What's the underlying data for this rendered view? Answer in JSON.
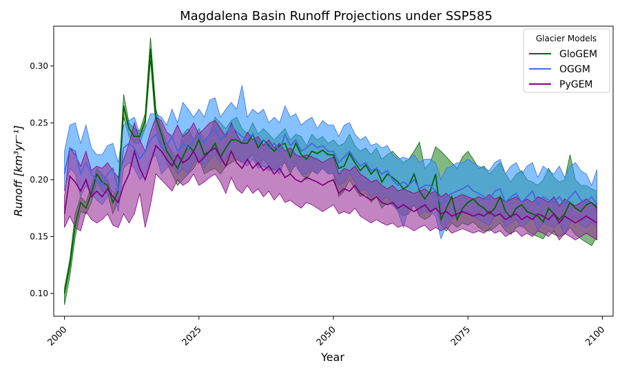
{
  "chart_data": {
    "type": "area",
    "title": "Magdalena Basin Runoff Projections under SSP585",
    "xlabel": "Year",
    "ylabel": "Runoff [km³yr⁻¹]",
    "xlim": [
      1998,
      2102
    ],
    "ylim": [
      0.08,
      0.335
    ],
    "xticks": [
      2000,
      2025,
      2050,
      2075,
      2100
    ],
    "yticks": [
      0.1,
      0.15,
      0.2,
      0.25,
      0.3
    ],
    "legend": {
      "title": "Glacier Models",
      "placement": "top-right"
    },
    "grid": false,
    "start_year": 2000,
    "series": [
      {
        "name": "GloGEM",
        "color": "#006400",
        "fill": "#2e8b2e",
        "mean": [
          0.1,
          0.125,
          0.16,
          0.18,
          0.175,
          0.188,
          0.205,
          0.198,
          0.195,
          0.18,
          0.19,
          0.265,
          0.245,
          0.238,
          0.238,
          0.252,
          0.315,
          0.255,
          0.24,
          0.225,
          0.218,
          0.21,
          0.22,
          0.23,
          0.225,
          0.235,
          0.222,
          0.225,
          0.232,
          0.22,
          0.228,
          0.235,
          0.235,
          0.232,
          0.232,
          0.24,
          0.228,
          0.235,
          0.23,
          0.225,
          0.23,
          0.232,
          0.22,
          0.232,
          0.222,
          0.218,
          0.225,
          0.223,
          0.226,
          0.222,
          0.222,
          0.21,
          0.212,
          0.223,
          0.215,
          0.208,
          0.213,
          0.205,
          0.21,
          0.198,
          0.205,
          0.202,
          0.198,
          0.192,
          0.195,
          0.205,
          0.19,
          0.183,
          0.19,
          0.205,
          0.165,
          0.175,
          0.185,
          0.165,
          0.175,
          0.18,
          0.183,
          0.178,
          0.175,
          0.17,
          0.175,
          0.185,
          0.172,
          0.167,
          0.175,
          0.178,
          0.172,
          0.17,
          0.168,
          0.163,
          0.175,
          0.17,
          0.165,
          0.17,
          0.18,
          0.175,
          0.172,
          0.178,
          0.18,
          0.175
        ],
        "upper": [
          0.105,
          0.13,
          0.17,
          0.185,
          0.18,
          0.195,
          0.21,
          0.205,
          0.2,
          0.185,
          0.195,
          0.275,
          0.25,
          0.245,
          0.243,
          0.258,
          0.325,
          0.262,
          0.245,
          0.232,
          0.225,
          0.218,
          0.24,
          0.245,
          0.235,
          0.245,
          0.235,
          0.24,
          0.255,
          0.25,
          0.245,
          0.252,
          0.255,
          0.245,
          0.24,
          0.25,
          0.24,
          0.245,
          0.24,
          0.235,
          0.24,
          0.245,
          0.235,
          0.24,
          0.238,
          0.23,
          0.24,
          0.235,
          0.238,
          0.232,
          0.235,
          0.23,
          0.232,
          0.24,
          0.23,
          0.225,
          0.228,
          0.222,
          0.228,
          0.218,
          0.222,
          0.225,
          0.22,
          0.215,
          0.218,
          0.225,
          0.233,
          0.21,
          0.215,
          0.229,
          0.225,
          0.22,
          0.215,
          0.21,
          0.22,
          0.225,
          0.218,
          0.21,
          0.212,
          0.205,
          0.21,
          0.215,
          0.205,
          0.198,
          0.205,
          0.208,
          0.2,
          0.198,
          0.195,
          0.2,
          0.21,
          0.202,
          0.198,
          0.2,
          0.222,
          0.2,
          0.195,
          0.195,
          0.192,
          0.19
        ],
        "lower": [
          0.09,
          0.115,
          0.15,
          0.172,
          0.17,
          0.18,
          0.198,
          0.19,
          0.188,
          0.17,
          0.182,
          0.255,
          0.238,
          0.232,
          0.232,
          0.245,
          0.305,
          0.245,
          0.23,
          0.215,
          0.205,
          0.195,
          0.2,
          0.205,
          0.21,
          0.218,
          0.205,
          0.208,
          0.21,
          0.205,
          0.212,
          0.215,
          0.218,
          0.215,
          0.218,
          0.222,
          0.212,
          0.218,
          0.212,
          0.208,
          0.212,
          0.215,
          0.205,
          0.215,
          0.205,
          0.2,
          0.208,
          0.205,
          0.21,
          0.205,
          0.205,
          0.185,
          0.19,
          0.2,
          0.192,
          0.185,
          0.188,
          0.18,
          0.185,
          0.175,
          0.18,
          0.178,
          0.172,
          0.168,
          0.17,
          0.178,
          0.168,
          0.165,
          0.168,
          0.178,
          0.16,
          0.155,
          0.162,
          0.158,
          0.162,
          0.16,
          0.163,
          0.158,
          0.155,
          0.155,
          0.158,
          0.162,
          0.155,
          0.152,
          0.158,
          0.16,
          0.155,
          0.152,
          0.15,
          0.148,
          0.155,
          0.152,
          0.15,
          0.152,
          0.158,
          0.152,
          0.148,
          0.145,
          0.142,
          0.15
        ]
      },
      {
        "name": "OGGM",
        "color": "#4169e1",
        "fill": "#3399ff",
        "mean": [
          0.205,
          0.228,
          0.225,
          0.205,
          0.215,
          0.205,
          0.2,
          0.195,
          0.205,
          0.21,
          0.19,
          0.228,
          0.232,
          0.228,
          0.218,
          0.225,
          0.235,
          0.24,
          0.228,
          0.23,
          0.238,
          0.225,
          0.232,
          0.228,
          0.235,
          0.238,
          0.232,
          0.24,
          0.245,
          0.235,
          0.24,
          0.248,
          0.242,
          0.238,
          0.235,
          0.24,
          0.232,
          0.235,
          0.228,
          0.232,
          0.225,
          0.24,
          0.23,
          0.235,
          0.225,
          0.228,
          0.232,
          0.228,
          0.23,
          0.225,
          0.225,
          0.215,
          0.22,
          0.225,
          0.218,
          0.212,
          0.215,
          0.208,
          0.21,
          0.205,
          0.208,
          0.2,
          0.195,
          0.198,
          0.195,
          0.2,
          0.192,
          0.195,
          0.195,
          0.19,
          0.178,
          0.185,
          0.188,
          0.19,
          0.192,
          0.195,
          0.19,
          0.188,
          0.185,
          0.182,
          0.19,
          0.192,
          0.18,
          0.185,
          0.188,
          0.18,
          0.185,
          0.19,
          0.178,
          0.185,
          0.182,
          0.18,
          0.185,
          0.178,
          0.185,
          0.19,
          0.182,
          0.18,
          0.185,
          0.178
        ],
        "upper": [
          0.225,
          0.248,
          0.25,
          0.232,
          0.248,
          0.228,
          0.222,
          0.222,
          0.23,
          0.232,
          0.215,
          0.248,
          0.252,
          0.255,
          0.24,
          0.245,
          0.258,
          0.258,
          0.255,
          0.248,
          0.262,
          0.25,
          0.268,
          0.262,
          0.255,
          0.262,
          0.255,
          0.27,
          0.272,
          0.255,
          0.262,
          0.268,
          0.262,
          0.283,
          0.255,
          0.262,
          0.258,
          0.262,
          0.25,
          0.255,
          0.25,
          0.265,
          0.255,
          0.258,
          0.248,
          0.252,
          0.255,
          0.245,
          0.252,
          0.248,
          0.248,
          0.238,
          0.248,
          0.25,
          0.24,
          0.235,
          0.238,
          0.23,
          0.232,
          0.228,
          0.23,
          0.222,
          0.218,
          0.22,
          0.218,
          0.222,
          0.215,
          0.218,
          0.218,
          0.215,
          0.2,
          0.21,
          0.212,
          0.215,
          0.215,
          0.218,
          0.215,
          0.212,
          0.21,
          0.208,
          0.215,
          0.218,
          0.205,
          0.212,
          0.215,
          0.205,
          0.212,
          0.215,
          0.202,
          0.212,
          0.208,
          0.205,
          0.212,
          0.202,
          0.212,
          0.215,
          0.208,
          0.205,
          0.195,
          0.209
        ],
        "lower": [
          0.19,
          0.21,
          0.205,
          0.185,
          0.195,
          0.188,
          0.182,
          0.178,
          0.185,
          0.19,
          0.172,
          0.21,
          0.215,
          0.21,
          0.2,
          0.205,
          0.218,
          0.222,
          0.205,
          0.21,
          0.215,
          0.205,
          0.21,
          0.205,
          0.215,
          0.218,
          0.21,
          0.218,
          0.222,
          0.215,
          0.218,
          0.225,
          0.22,
          0.215,
          0.212,
          0.218,
          0.21,
          0.212,
          0.208,
          0.21,
          0.205,
          0.218,
          0.208,
          0.212,
          0.205,
          0.205,
          0.21,
          0.205,
          0.21,
          0.205,
          0.205,
          0.195,
          0.198,
          0.205,
          0.198,
          0.19,
          0.192,
          0.185,
          0.188,
          0.182,
          0.185,
          0.178,
          0.172,
          0.158,
          0.175,
          0.178,
          0.17,
          0.172,
          0.172,
          0.168,
          0.148,
          0.16,
          0.165,
          0.168,
          0.17,
          0.172,
          0.168,
          0.165,
          0.162,
          0.16,
          0.168,
          0.17,
          0.158,
          0.162,
          0.165,
          0.158,
          0.162,
          0.168,
          0.155,
          0.162,
          0.16,
          0.158,
          0.162,
          0.152,
          0.162,
          0.168,
          0.16,
          0.158,
          0.162,
          0.158
        ]
      },
      {
        "name": "PyGEM",
        "color": "#800080",
        "fill": "#993399",
        "mean": [
          0.17,
          0.203,
          0.198,
          0.19,
          0.2,
          0.185,
          0.19,
          0.185,
          0.192,
          0.185,
          0.18,
          0.195,
          0.205,
          0.225,
          0.21,
          0.2,
          0.215,
          0.23,
          0.225,
          0.218,
          0.212,
          0.222,
          0.215,
          0.218,
          0.225,
          0.215,
          0.22,
          0.225,
          0.228,
          0.22,
          0.212,
          0.225,
          0.215,
          0.21,
          0.218,
          0.21,
          0.215,
          0.208,
          0.212,
          0.205,
          0.21,
          0.202,
          0.205,
          0.2,
          0.198,
          0.202,
          0.2,
          0.198,
          0.195,
          0.198,
          0.2,
          0.188,
          0.192,
          0.19,
          0.195,
          0.188,
          0.185,
          0.182,
          0.185,
          0.18,
          0.178,
          0.18,
          0.175,
          0.178,
          0.175,
          0.172,
          0.175,
          0.178,
          0.172,
          0.175,
          0.17,
          0.172,
          0.168,
          0.17,
          0.172,
          0.17,
          0.168,
          0.17,
          0.168,
          0.172,
          0.168,
          0.17,
          0.165,
          0.168,
          0.17,
          0.165,
          0.168,
          0.165,
          0.17,
          0.168,
          0.165,
          0.17,
          0.162,
          0.168,
          0.165,
          0.162,
          0.165,
          0.168,
          0.165,
          0.162
        ],
        "upper": [
          0.185,
          0.228,
          0.222,
          0.212,
          0.225,
          0.208,
          0.212,
          0.21,
          0.215,
          0.208,
          0.202,
          0.218,
          0.232,
          0.25,
          0.235,
          0.225,
          0.242,
          0.255,
          0.252,
          0.242,
          0.238,
          0.248,
          0.238,
          0.242,
          0.25,
          0.24,
          0.245,
          0.25,
          0.252,
          0.245,
          0.238,
          0.25,
          0.24,
          0.232,
          0.242,
          0.235,
          0.238,
          0.23,
          0.235,
          0.228,
          0.232,
          0.225,
          0.228,
          0.222,
          0.22,
          0.222,
          0.22,
          0.218,
          0.215,
          0.218,
          0.22,
          0.205,
          0.21,
          0.208,
          0.212,
          0.205,
          0.202,
          0.198,
          0.2,
          0.195,
          0.192,
          0.195,
          0.19,
          0.192,
          0.19,
          0.188,
          0.19,
          0.192,
          0.188,
          0.19,
          0.185,
          0.188,
          0.183,
          0.185,
          0.187,
          0.185,
          0.183,
          0.185,
          0.183,
          0.187,
          0.183,
          0.185,
          0.18,
          0.183,
          0.185,
          0.18,
          0.183,
          0.18,
          0.185,
          0.183,
          0.18,
          0.185,
          0.177,
          0.183,
          0.18,
          0.177,
          0.18,
          0.183,
          0.18,
          0.177
        ],
        "lower": [
          0.158,
          0.168,
          0.158,
          0.155,
          0.172,
          0.165,
          0.162,
          0.165,
          0.17,
          0.16,
          0.158,
          0.17,
          0.162,
          0.17,
          0.188,
          0.158,
          0.178,
          0.205,
          0.2,
          0.195,
          0.19,
          0.2,
          0.195,
          0.198,
          0.205,
          0.195,
          0.198,
          0.202,
          0.205,
          0.198,
          0.188,
          0.202,
          0.192,
          0.188,
          0.195,
          0.188,
          0.192,
          0.185,
          0.19,
          0.182,
          0.188,
          0.18,
          0.182,
          0.178,
          0.175,
          0.18,
          0.178,
          0.175,
          0.172,
          0.175,
          0.178,
          0.17,
          0.172,
          0.17,
          0.175,
          0.168,
          0.165,
          0.162,
          0.165,
          0.162,
          0.16,
          0.162,
          0.158,
          0.16,
          0.158,
          0.155,
          0.158,
          0.16,
          0.155,
          0.158,
          0.155,
          0.158,
          0.153,
          0.155,
          0.157,
          0.155,
          0.153,
          0.155,
          0.153,
          0.157,
          0.153,
          0.155,
          0.15,
          0.153,
          0.155,
          0.15,
          0.153,
          0.15,
          0.155,
          0.153,
          0.15,
          0.155,
          0.147,
          0.153,
          0.15,
          0.147,
          0.15,
          0.153,
          0.15,
          0.147
        ]
      }
    ]
  }
}
